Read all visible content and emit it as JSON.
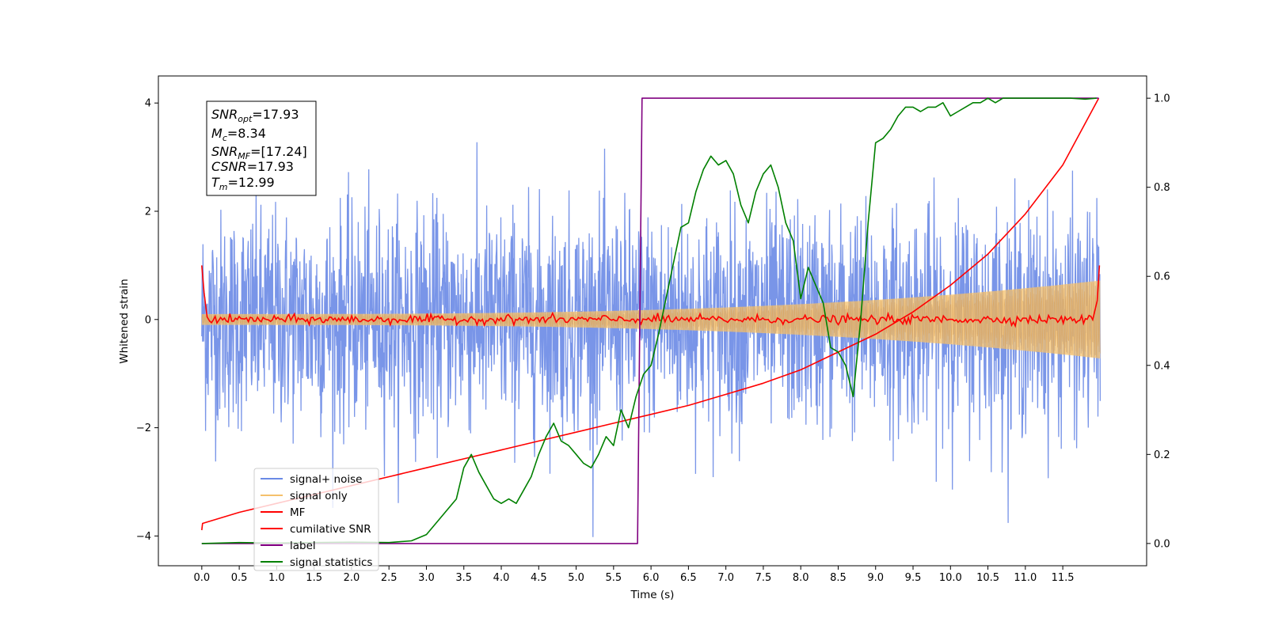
{
  "chart_data": {
    "type": "line",
    "xlabel": "Time (s)",
    "ylabel": "Whitened strain",
    "xlim": [
      -0.58,
      12.62
    ],
    "ylim": [
      -4.55,
      4.5
    ],
    "y2lim": [
      -0.05,
      1.05
    ],
    "x_ticks": [
      "0.0",
      "0.5",
      "1.0",
      "1.5",
      "2.0",
      "2.5",
      "3.0",
      "3.5",
      "4.0",
      "4.5",
      "5.0",
      "5.5",
      "6.0",
      "6.5",
      "7.0",
      "7.5",
      "8.0",
      "8.5",
      "9.0",
      "9.5",
      "10.0",
      "10.5",
      "11.0",
      "11.5"
    ],
    "y_ticks": [
      "4",
      "2",
      "0",
      "−2",
      "−4"
    ],
    "y2_ticks": [
      "1.0",
      "0.8",
      "0.6",
      "0.4",
      "0.2",
      "0.0"
    ],
    "grid": false,
    "legend_position": "lower-left",
    "info_box": {
      "snr_opt": {
        "sym": "SNR",
        "sub": "opt",
        "value": "=17.93"
      },
      "mc": {
        "sym": "M",
        "sub": "c",
        "value": "=8.34"
      },
      "snr_mf": {
        "sym": "SNR",
        "sub": "MF",
        "value": "=[17.24]"
      },
      "csnr": {
        "sym": "CSNR",
        "sub": "",
        "value": "=17.93"
      },
      "tm": {
        "sym": "T",
        "sub": "m",
        "value": "=12.99"
      }
    },
    "series": [
      {
        "name": "signal+ noise",
        "color": "#6a8ae6",
        "axis": "left",
        "kind": "noise",
        "envelope_std": 1.0,
        "t_range": [
          0,
          12.0
        ]
      },
      {
        "name": "signal only",
        "color": "#f5c16c",
        "axis": "left",
        "kind": "chirp",
        "amplitude_start": 0.1,
        "amplitude_end": 0.72,
        "t_range": [
          0,
          12.0
        ]
      },
      {
        "name": "MF",
        "color": "#ff0000",
        "axis": "left",
        "kind": "mf",
        "start": 1.0,
        "end": 1.0,
        "noise_level": 0.04
      },
      {
        "name": "cumilative SNR",
        "color": "#ff0000",
        "axis": "right",
        "x": [
          0.0,
          0.01,
          0.5,
          1.0,
          1.5,
          2.0,
          2.5,
          3.0,
          3.5,
          4.0,
          4.5,
          5.0,
          5.5,
          6.0,
          6.5,
          7.0,
          7.5,
          8.0,
          8.5,
          9.0,
          9.5,
          10.0,
          10.5,
          11.0,
          11.5,
          11.98
        ],
        "y": [
          0.03,
          0.045,
          0.07,
          0.09,
          0.11,
          0.13,
          0.15,
          0.17,
          0.19,
          0.21,
          0.23,
          0.25,
          0.27,
          0.29,
          0.31,
          0.335,
          0.36,
          0.39,
          0.43,
          0.47,
          0.52,
          0.58,
          0.65,
          0.74,
          0.85,
          1.0
        ]
      },
      {
        "name": "label",
        "color": "#800080",
        "axis": "right",
        "x": [
          0.0,
          5.82,
          5.82,
          5.88,
          5.88,
          11.98
        ],
        "y": [
          0.0,
          0.0,
          0.0,
          1.0,
          1.0,
          1.0
        ]
      },
      {
        "name": "signal statistics",
        "color": "#008000",
        "axis": "right",
        "x": [
          0.0,
          0.5,
          1.0,
          1.5,
          2.0,
          2.5,
          2.8,
          3.0,
          3.2,
          3.4,
          3.5,
          3.6,
          3.7,
          3.8,
          3.9,
          4.0,
          4.1,
          4.2,
          4.3,
          4.4,
          4.5,
          4.6,
          4.7,
          4.8,
          4.9,
          5.0,
          5.1,
          5.2,
          5.3,
          5.4,
          5.5,
          5.6,
          5.7,
          5.8,
          5.9,
          6.0,
          6.1,
          6.2,
          6.3,
          6.4,
          6.5,
          6.6,
          6.7,
          6.8,
          6.9,
          7.0,
          7.1,
          7.2,
          7.3,
          7.4,
          7.5,
          7.6,
          7.7,
          7.8,
          7.9,
          8.0,
          8.1,
          8.2,
          8.3,
          8.4,
          8.5,
          8.6,
          8.7,
          8.8,
          8.9,
          9.0,
          9.1,
          9.2,
          9.3,
          9.4,
          9.5,
          9.6,
          9.7,
          9.8,
          9.9,
          10.0,
          10.1,
          10.2,
          10.3,
          10.4,
          10.5,
          10.6,
          10.7,
          10.8,
          10.9,
          11.0,
          11.2,
          11.4,
          11.6,
          11.8,
          11.95
        ],
        "y": [
          0.0,
          0.002,
          0.001,
          0.002,
          0.003,
          0.002,
          0.006,
          0.02,
          0.06,
          0.1,
          0.17,
          0.2,
          0.16,
          0.13,
          0.1,
          0.09,
          0.1,
          0.09,
          0.12,
          0.15,
          0.2,
          0.24,
          0.27,
          0.23,
          0.22,
          0.2,
          0.18,
          0.17,
          0.2,
          0.24,
          0.22,
          0.3,
          0.26,
          0.33,
          0.38,
          0.4,
          0.47,
          0.55,
          0.63,
          0.71,
          0.72,
          0.79,
          0.84,
          0.87,
          0.85,
          0.86,
          0.83,
          0.76,
          0.72,
          0.79,
          0.83,
          0.85,
          0.8,
          0.72,
          0.68,
          0.55,
          0.62,
          0.58,
          0.54,
          0.44,
          0.43,
          0.4,
          0.33,
          0.5,
          0.72,
          0.9,
          0.91,
          0.93,
          0.96,
          0.98,
          0.98,
          0.97,
          0.98,
          0.98,
          0.99,
          0.96,
          0.97,
          0.98,
          0.99,
          0.99,
          1.0,
          0.99,
          1.0,
          1.0,
          1.0,
          1.0,
          1.0,
          1.0,
          1.0,
          0.998,
          1.0
        ]
      }
    ]
  }
}
